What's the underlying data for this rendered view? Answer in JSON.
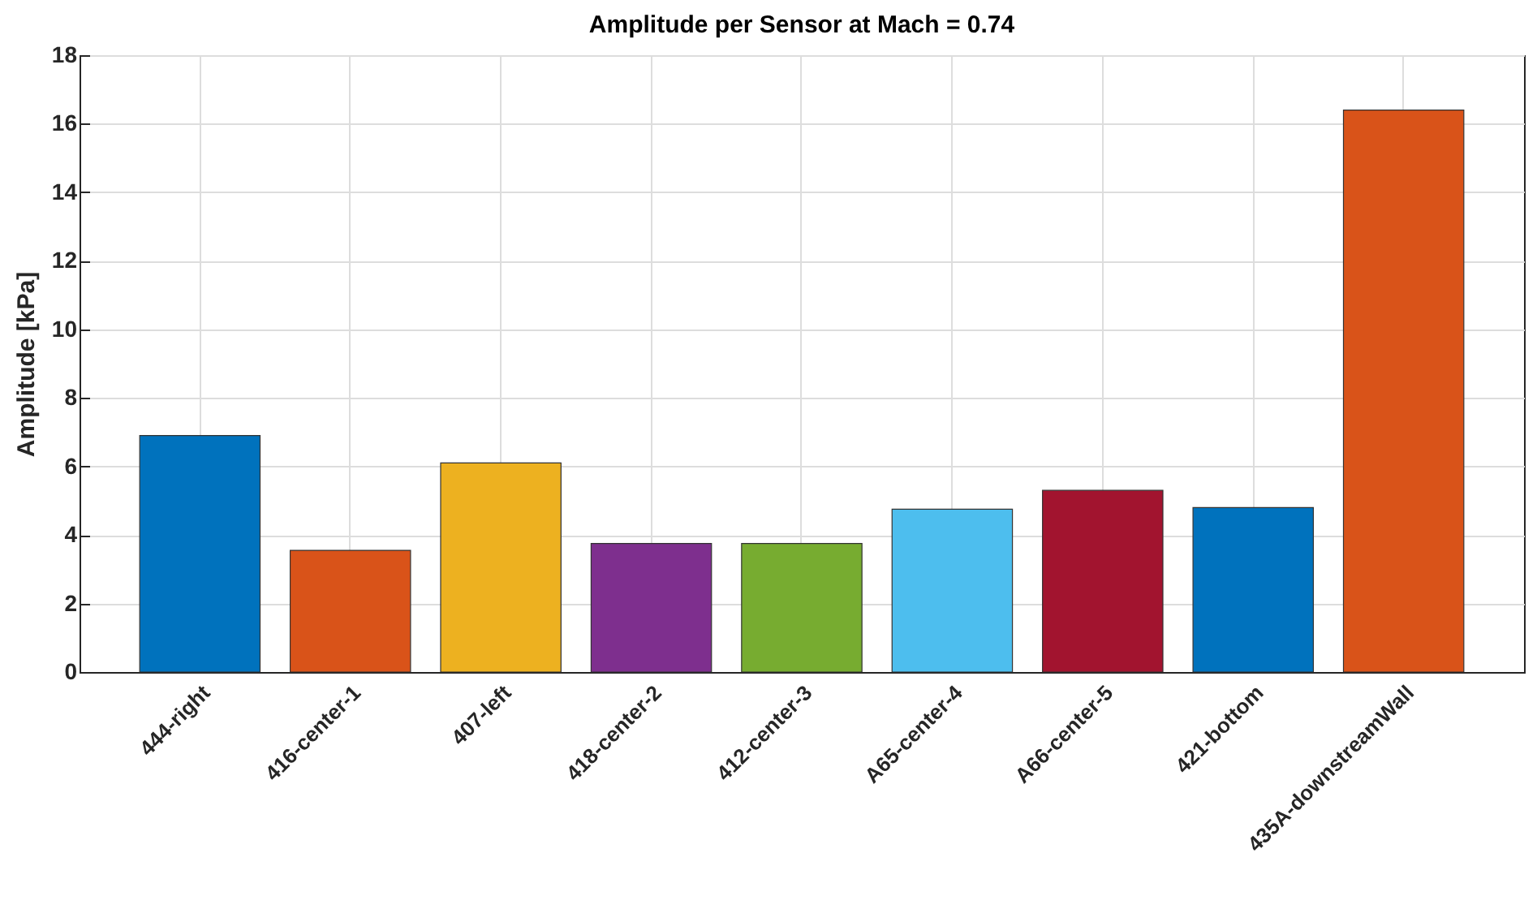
{
  "chart_data": {
    "type": "bar",
    "title": "Amplitude per Sensor at Mach = 0.74",
    "ylabel": "Amplitude [kPa]",
    "categories": [
      "444-right",
      "416-center-1",
      "407-left",
      "418-center-2",
      "412-center-3",
      "A65-center-4",
      "A66-center-5",
      "421-bottom",
      "435A-downstreamWall"
    ],
    "values": [
      6.9,
      3.55,
      6.1,
      3.75,
      3.75,
      4.75,
      5.3,
      4.8,
      16.4
    ],
    "colors": [
      "#0072bd",
      "#d95319",
      "#edb120",
      "#7e2f8e",
      "#77ac30",
      "#4dbeee",
      "#a2142f",
      "#0072bd",
      "#d95319"
    ],
    "ylim": [
      0,
      18
    ],
    "yticks": [
      0,
      2,
      4,
      6,
      8,
      10,
      12,
      14,
      16,
      18
    ],
    "grid": true,
    "legend": false
  }
}
